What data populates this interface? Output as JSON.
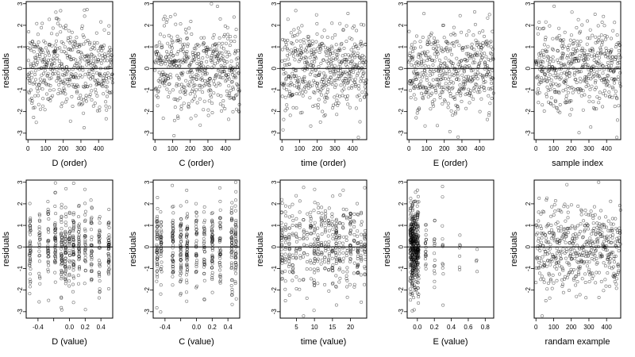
{
  "chart_data": [
    {
      "type": "scatter",
      "xlabel": "D (order)",
      "ylabel": "residuals",
      "xlim": [
        -10,
        480
      ],
      "ylim": [
        -3.3,
        3.1
      ],
      "x_ticks": [
        0,
        100,
        200,
        300,
        400
      ],
      "y_ticks": [
        -3,
        -2,
        -1,
        0,
        1,
        2,
        3
      ],
      "hline": 0,
      "color": "#000000",
      "n": 480,
      "x_spacing": "order",
      "x_clusters": [],
      "y_spread": 1.0
    },
    {
      "type": "scatter",
      "xlabel": "C (order)",
      "ylabel": "residuals",
      "xlim": [
        -10,
        480
      ],
      "ylim": [
        -3.3,
        3.1
      ],
      "x_ticks": [
        0,
        100,
        200,
        300,
        400
      ],
      "y_ticks": [
        -3,
        -2,
        -1,
        0,
        1,
        2,
        3
      ],
      "hline": 0,
      "color": "#000000",
      "n": 480,
      "x_spacing": "order",
      "x_clusters": [],
      "y_spread": 1.0
    },
    {
      "type": "scatter",
      "xlabel": "time (order)",
      "ylabel": "residuals",
      "xlim": [
        -10,
        480
      ],
      "ylim": [
        -3.3,
        3.1
      ],
      "x_ticks": [
        0,
        100,
        200,
        300,
        400
      ],
      "y_ticks": [
        -3,
        -2,
        -1,
        0,
        1,
        2,
        3
      ],
      "hline": 0,
      "color": "#000000",
      "n": 480,
      "x_spacing": "order",
      "x_clusters": [],
      "y_spread": 1.0
    },
    {
      "type": "scatter",
      "xlabel": "E (order)",
      "ylabel": "residuals",
      "xlim": [
        -10,
        480
      ],
      "ylim": [
        -3.3,
        3.1
      ],
      "x_ticks": [
        0,
        100,
        200,
        300,
        400
      ],
      "y_ticks": [
        -3,
        -2,
        -1,
        0,
        1,
        2,
        3
      ],
      "hline": 0,
      "color": "#000000",
      "n": 480,
      "x_spacing": "order",
      "x_clusters": [],
      "y_spread": 1.0
    },
    {
      "type": "scatter",
      "xlabel": "sample index",
      "ylabel": "residuals",
      "xlim": [
        -10,
        480
      ],
      "ylim": [
        -3.3,
        3.1
      ],
      "x_ticks": [
        0,
        100,
        200,
        300,
        400
      ],
      "y_ticks": [
        -3,
        -2,
        -1,
        0,
        1,
        2,
        3
      ],
      "hline": 0,
      "color": "#000000",
      "n": 480,
      "x_spacing": "order",
      "x_clusters": [],
      "y_spread": 1.0
    },
    {
      "type": "scatter",
      "xlabel": "D (value)",
      "ylabel": "residuals",
      "xlim": [
        -0.55,
        0.55
      ],
      "ylim": [
        -3.3,
        3.1
      ],
      "x_ticks": [
        -0.4,
        -0.2,
        0.0,
        0.2,
        0.4
      ],
      "x_tick_labels": [
        "-0.4",
        "",
        "0.0",
        "0.2",
        "0.4"
      ],
      "y_ticks": [
        -3,
        -2,
        -1,
        0,
        1,
        2,
        3
      ],
      "hline": 0,
      "color": "#000000",
      "n": 480,
      "x_spacing": "clusters",
      "x_clusters": [
        -0.5,
        -0.38,
        -0.27,
        -0.18,
        -0.1,
        -0.05,
        0.0,
        0.05,
        0.12,
        0.2,
        0.28,
        0.38,
        0.5
      ],
      "y_spread": 1.0
    },
    {
      "type": "scatter",
      "xlabel": "C (value)",
      "ylabel": "residuals",
      "xlim": [
        -0.55,
        0.55
      ],
      "ylim": [
        -3.3,
        3.1
      ],
      "x_ticks": [
        -0.4,
        -0.2,
        0.0,
        0.2,
        0.4
      ],
      "x_tick_labels": [
        "-0.4",
        "",
        "0.0",
        "0.2",
        "0.4"
      ],
      "y_ticks": [
        -3,
        -2,
        -1,
        0,
        1,
        2,
        3
      ],
      "hline": 0,
      "color": "#000000",
      "n": 480,
      "x_spacing": "clusters",
      "x_clusters": [
        -0.5,
        -0.45,
        -0.3,
        -0.2,
        -0.12,
        0.0,
        0.1,
        0.2,
        0.3,
        0.45,
        0.5
      ],
      "y_spread": 1.0
    },
    {
      "type": "scatter",
      "xlabel": "time (value)",
      "ylabel": "residuals",
      "xlim": [
        0.5,
        24.5
      ],
      "ylim": [
        -3.3,
        3.1
      ],
      "x_ticks": [
        5,
        10,
        15,
        20
      ],
      "x_tick_labels": [
        "5",
        "10",
        "15",
        "20"
      ],
      "y_ticks": [
        -3,
        -2,
        -1,
        0,
        1,
        2,
        3
      ],
      "hline": 0,
      "color": "#000000",
      "n": 480,
      "x_spacing": "clusters",
      "x_clusters": [
        1,
        2,
        3,
        4,
        5,
        6,
        7,
        8,
        9,
        10,
        11,
        12,
        13,
        14,
        15,
        16,
        17,
        18,
        19,
        20,
        21,
        22,
        23,
        24
      ],
      "y_spread": 1.0
    },
    {
      "type": "scatter",
      "xlabel": "E (value)",
      "ylabel": "residuals",
      "xlim": [
        -0.12,
        0.9
      ],
      "ylim": [
        -3.3,
        3.1
      ],
      "x_ticks": [
        0.0,
        0.2,
        0.4,
        0.6,
        0.8
      ],
      "x_tick_labels": [
        "0.0",
        "0.2",
        "0.4",
        "0.6",
        "0.8"
      ],
      "y_ticks": [
        -3,
        -2,
        -1,
        0,
        1,
        2,
        3
      ],
      "hline": 0,
      "color": "#000000",
      "n": 480,
      "x_spacing": "clusters",
      "x_clusters": [
        -0.08,
        -0.06,
        -0.04,
        -0.02,
        0.0,
        0.01,
        0.1,
        0.2,
        0.3,
        0.5,
        0.7,
        0.85
      ],
      "x_cluster_weights": [
        8,
        9,
        9,
        8,
        6,
        5,
        2,
        2,
        1,
        0.4,
        0.3,
        0.3
      ],
      "y_spread": 1.0
    },
    {
      "type": "scatter",
      "xlabel": "randam example",
      "ylabel": "residuals",
      "xlim": [
        -10,
        480
      ],
      "ylim": [
        -3.3,
        3.1
      ],
      "x_ticks": [
        0,
        100,
        200,
        300,
        400
      ],
      "y_ticks": [
        -2,
        -1,
        0,
        1,
        2
      ],
      "hline": 0,
      "color": "#000000",
      "n": 480,
      "x_spacing": "order",
      "x_clusters": [],
      "y_spread": 1.0
    }
  ]
}
